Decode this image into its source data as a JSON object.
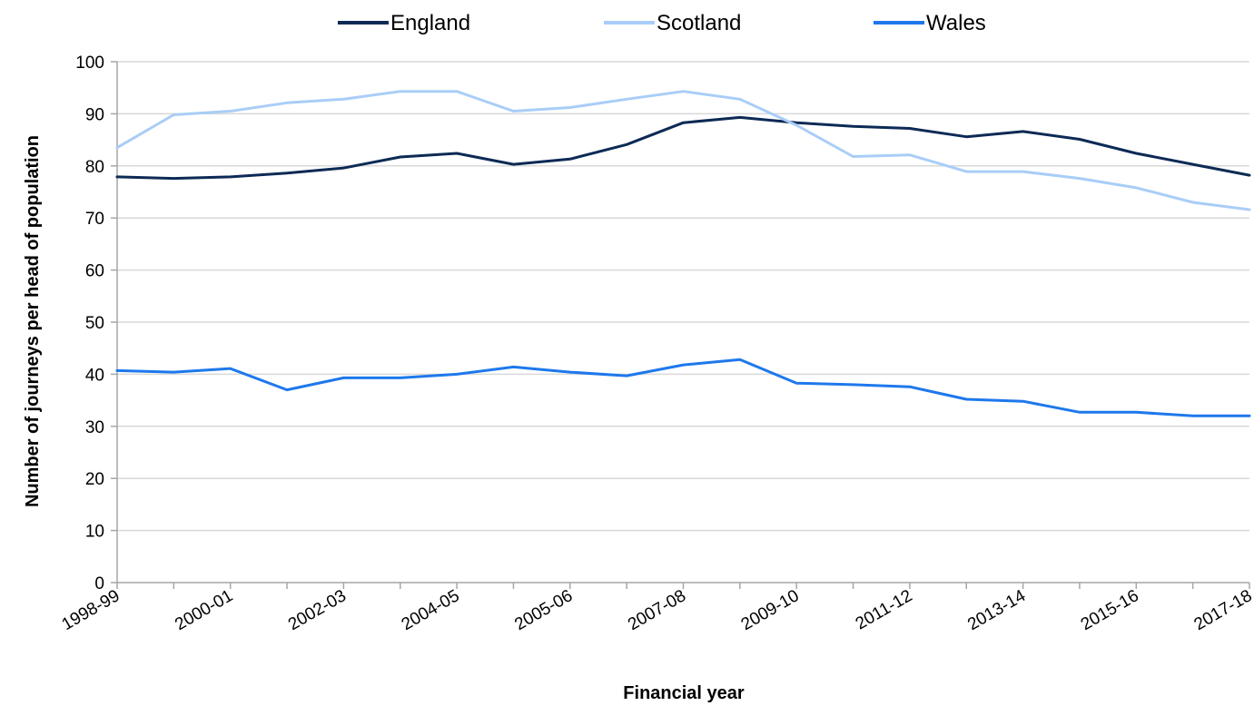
{
  "chart_data": {
    "type": "line",
    "xlabel": "Financial year",
    "ylabel": "Number of journeys per head of population",
    "ylim": [
      0,
      100
    ],
    "ytick_step": 10,
    "grid": true,
    "legend_position": "top",
    "x_points": 21,
    "x_tick_labels": [
      {
        "index": 0,
        "label": "1998-99"
      },
      {
        "index": 2,
        "label": "2000-01"
      },
      {
        "index": 4,
        "label": "2002-03"
      },
      {
        "index": 6,
        "label": "2004-05"
      },
      {
        "index": 8,
        "label": "2005-06"
      },
      {
        "index": 10,
        "label": "2007-08"
      },
      {
        "index": 12,
        "label": "2009-10"
      },
      {
        "index": 14,
        "label": "2011-12"
      },
      {
        "index": 16,
        "label": "2013-14"
      },
      {
        "index": 18,
        "label": "2015-16"
      },
      {
        "index": 20,
        "label": "2017-18"
      }
    ],
    "series": [
      {
        "name": "England",
        "color": "#0d2a55",
        "values": [
          77.9,
          77.6,
          77.9,
          78.6,
          79.6,
          81.7,
          82.4,
          80.3,
          81.3,
          84.1,
          88.3,
          89.3,
          88.3,
          87.6,
          87.2,
          85.6,
          86.6,
          85.1,
          82.4,
          80.3,
          78.2
        ]
      },
      {
        "name": "Scotland",
        "color": "#a9cdf7",
        "values": [
          83.5,
          89.8,
          90.5,
          92.1,
          92.8,
          94.3,
          94.3,
          90.5,
          91.2,
          92.8,
          94.3,
          92.8,
          87.8,
          81.8,
          82.1,
          78.9,
          78.9,
          77.6,
          75.8,
          73.0,
          71.6
        ]
      },
      {
        "name": "Wales",
        "color": "#1e78ec",
        "values": [
          40.7,
          40.4,
          41.1,
          37.0,
          39.3,
          39.3,
          40.0,
          41.4,
          40.4,
          39.7,
          41.8,
          42.8,
          38.3,
          38.0,
          37.6,
          35.2,
          34.8,
          32.7,
          32.7,
          32.0,
          32.0
        ]
      }
    ]
  }
}
